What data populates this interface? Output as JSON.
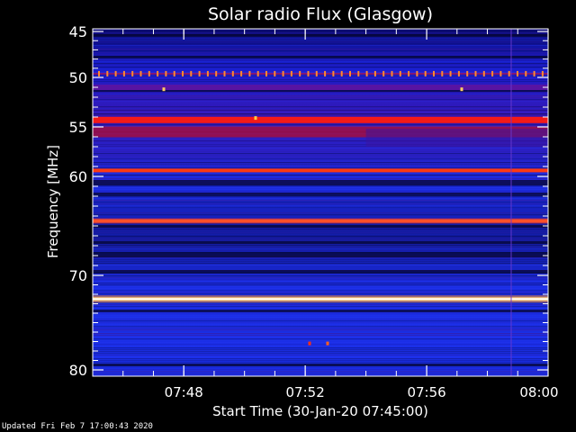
{
  "chart_data": {
    "type": "heatmap",
    "title": "Solar radio Flux (Glasgow)",
    "xlabel": "Start Time (30-Jan-20 07:45:00)",
    "ylabel": "Frequency [MHz]",
    "xlim": [
      "07:45",
      "08:00"
    ],
    "ylim": [
      45,
      80
    ],
    "y_reversed": true,
    "x_ticks": [
      "07:48",
      "07:52",
      "07:56",
      "08:00"
    ],
    "y_ticks": [
      45,
      50,
      55,
      60,
      70,
      80
    ],
    "y_scale": "nonlinear (frequency increases downward)",
    "colormap": [
      "#000000",
      "#00007f",
      "#0000ff",
      "#6a00c8",
      "#c8003c",
      "#ff2000",
      "#ffa000",
      "#ffffc8"
    ],
    "background_level": "blue",
    "bands": [
      {
        "freq_mhz": 49.6,
        "level": "dotted red periodic spikes"
      },
      {
        "freq_mhz": 51.0,
        "level": "faint red"
      },
      {
        "freq_mhz": 54.3,
        "level": "strong red"
      },
      {
        "freq_mhz": 55.5,
        "level": "red, weaker after 07:54"
      },
      {
        "freq_mhz": 59.4,
        "level": "strong red-orange"
      },
      {
        "freq_mhz": 64.5,
        "level": "orange"
      },
      {
        "freq_mhz": 72.5,
        "level": "saturated yellow-white"
      }
    ]
  },
  "footer": {
    "updated": "Updated Fri Feb  7 17:00:43 2020"
  }
}
